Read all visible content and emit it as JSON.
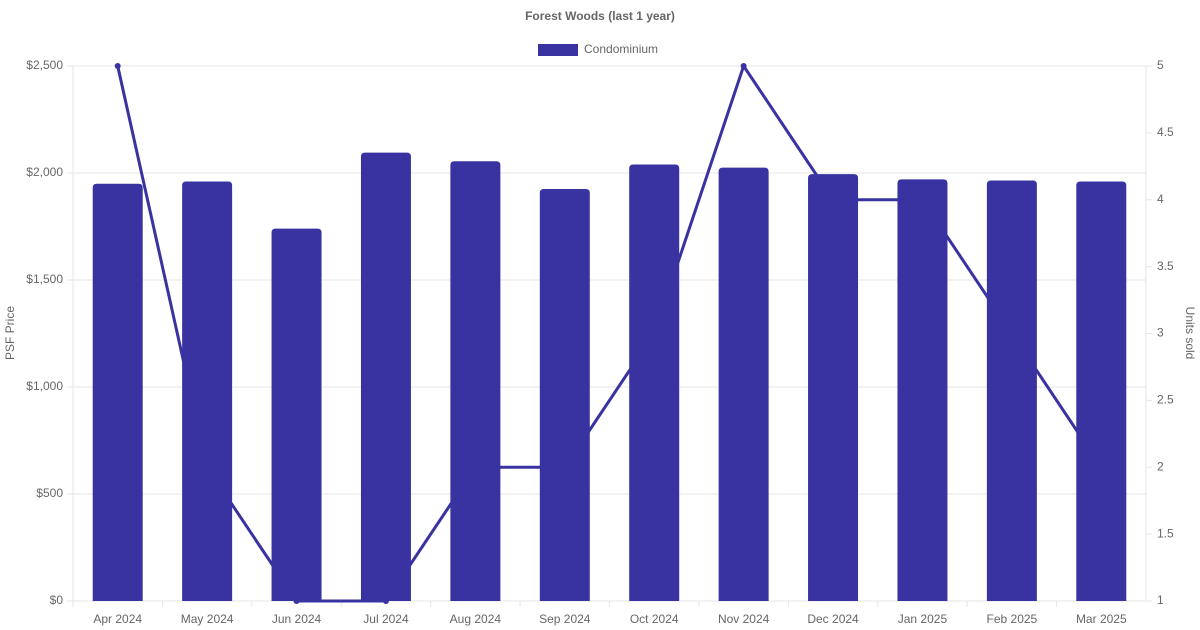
{
  "chart_data": {
    "type": "bar",
    "title": "Forest Woods (last 1 year)",
    "categories": [
      "Apr 2024",
      "May 2024",
      "Jun 2024",
      "Jul 2024",
      "Aug 2024",
      "Sep 2024",
      "Oct 2024",
      "Nov 2024",
      "Dec 2024",
      "Jan 2025",
      "Feb 2025",
      "Mar 2025"
    ],
    "series": [
      {
        "name": "Condominium",
        "type": "bar",
        "color": "#3833a0",
        "values": [
          1950,
          1960,
          1740,
          2095,
          2055,
          1925,
          2040,
          2025,
          1995,
          1970,
          1965,
          1960
        ]
      },
      {
        "type": "line",
        "axis": "y2",
        "color": "#3833a0",
        "values": [
          5,
          2,
          1,
          1,
          2,
          2,
          3,
          5,
          4,
          4,
          3,
          2
        ]
      }
    ],
    "y_label": "PSF Price",
    "y2_label": "Units sold",
    "ylim": [
      0,
      2500
    ],
    "yticks": [
      {
        "value": 0,
        "label": "$0"
      },
      {
        "value": 500,
        "label": "$500"
      },
      {
        "value": 1000,
        "label": "$1,000"
      },
      {
        "value": 1500,
        "label": "$1,500"
      },
      {
        "value": 2000,
        "label": "$2,000"
      },
      {
        "value": 2500,
        "label": "$2,500"
      }
    ],
    "y2lim": [
      1,
      5
    ],
    "y2ticks": [
      1,
      1.5,
      2,
      2.5,
      3,
      3.5,
      4,
      4.5,
      5
    ],
    "grid": true,
    "legend": "top"
  }
}
